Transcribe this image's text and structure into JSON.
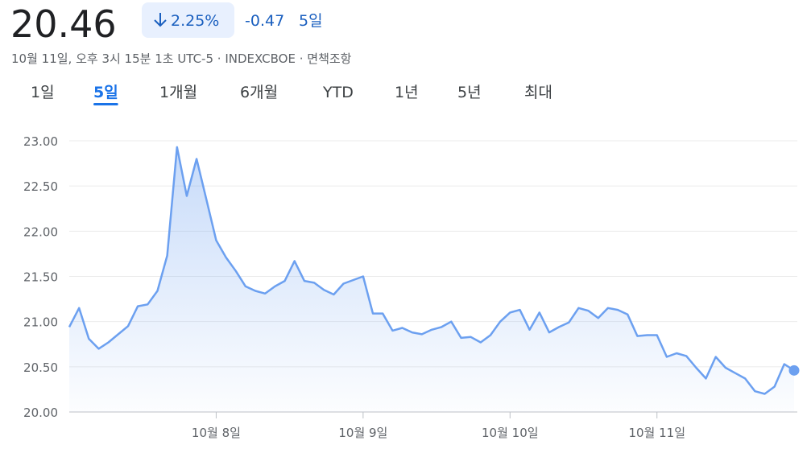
{
  "header": {
    "price": "20.46",
    "change_percent": "2.25%",
    "change": "-0.47",
    "period": "5일",
    "timestamp": "10월 11일, 오후 3시 15분 1초 UTC-5 · INDEXCBOE · 면책조항"
  },
  "tabs": [
    "1일",
    "5일",
    "1개월",
    "6개월",
    "YTD",
    "1년",
    "5년",
    "최대"
  ],
  "selected_tab": 1,
  "chart_data": {
    "type": "line",
    "color": "#6ca0f0",
    "grid": true,
    "values": [
      20.94,
      21.15,
      20.81,
      20.7,
      20.77,
      20.86,
      20.95,
      21.17,
      21.19,
      21.34,
      21.73,
      22.93,
      22.39,
      22.8,
      22.35,
      21.9,
      21.71,
      21.56,
      21.39,
      21.34,
      21.31,
      21.39,
      21.45,
      21.67,
      21.45,
      21.43,
      21.35,
      21.3,
      21.42,
      21.46,
      21.5,
      21.09,
      21.09,
      20.9,
      20.93,
      20.88,
      20.86,
      20.91,
      20.94,
      21.0,
      20.82,
      20.83,
      20.77,
      20.85,
      21.0,
      21.1,
      21.13,
      20.91,
      21.1,
      20.88,
      20.94,
      20.99,
      21.15,
      21.12,
      21.04,
      21.15,
      21.13,
      21.08,
      20.84,
      20.85,
      20.85,
      20.61,
      20.65,
      20.62,
      20.49,
      20.37,
      20.61,
      20.49,
      20.43,
      20.37,
      20.23,
      20.2,
      20.28,
      20.53,
      20.46
    ],
    "xlim": [
      0,
      74
    ],
    "xticks": [
      {
        "value": 15,
        "label": "10월 8일"
      },
      {
        "value": 30,
        "label": "10월 9일"
      },
      {
        "value": 45,
        "label": "10월 10일"
      },
      {
        "value": 60,
        "label": "10월 11일"
      }
    ],
    "ylim": [
      20,
      23
    ],
    "yticks": [
      {
        "value": 20,
        "label": "20.00"
      },
      {
        "value": 20.5,
        "label": "20.50"
      },
      {
        "value": 21,
        "label": "21.00"
      },
      {
        "value": 21.5,
        "label": "21.50"
      },
      {
        "value": 22,
        "label": "22.00"
      },
      {
        "value": 22.5,
        "label": "22.50"
      },
      {
        "value": 23,
        "label": "23.00"
      }
    ]
  }
}
